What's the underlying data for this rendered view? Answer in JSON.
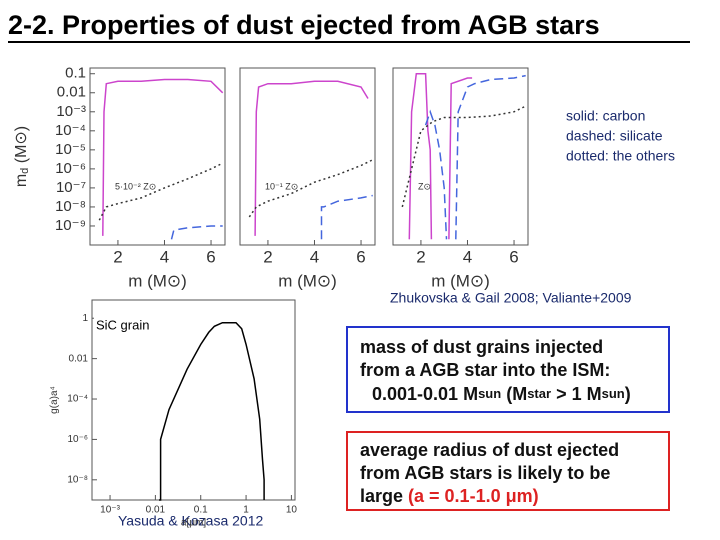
{
  "title": "2-2. Properties of dust ejected from AGB stars",
  "chart_data": [
    {
      "type": "line",
      "log_x": false,
      "log_y": true,
      "annotation": "5·10⁻² Z⊙",
      "ylabel": "m",
      "ylabel_sub": "d",
      "ylabel_unit": " (M⊙)",
      "xlabel": "m  (M⊙)",
      "xlim": [
        0.8,
        6.6
      ],
      "ylim": [
        1e-10,
        0.2
      ],
      "xticks": [
        2,
        4,
        6
      ],
      "yticks": [
        0.1,
        0.01,
        {
          "value": 0.001,
          "label": "10⁻³"
        },
        {
          "value": 0.0001,
          "label": "10⁻⁴"
        },
        {
          "value": 1e-05,
          "label": "10⁻⁵"
        },
        {
          "value": 1e-06,
          "label": "10⁻⁶"
        },
        {
          "value": 1e-07,
          "label": "10⁻⁷"
        },
        {
          "value": 1e-08,
          "label": "10⁻⁸"
        },
        {
          "value": 1e-09,
          "label": "10⁻⁹"
        }
      ],
      "series": [
        {
          "color": "#cc44cc",
          "dash": "solid",
          "x": [
            1.35,
            1.4,
            1.5,
            2,
            3,
            4,
            5,
            6,
            6.5
          ],
          "values": [
            3e-10,
            0.001,
            0.03,
            0.04,
            0.04,
            0.05,
            0.05,
            0.04,
            0.01
          ]
        },
        {
          "color": "#4466dd",
          "dash": "dashed",
          "x": [
            4.3,
            4.4,
            5,
            6,
            6.5
          ],
          "values": [
            2e-10,
            6e-10,
            8e-10,
            1e-09,
            1e-09
          ]
        },
        {
          "color": "#333333",
          "dash": "dotted",
          "x": [
            1.2,
            1.5,
            2,
            3,
            4,
            5,
            6,
            6.5
          ],
          "values": [
            2e-09,
            1e-08,
            1.5e-08,
            3e-08,
            1e-07,
            3e-07,
            1e-06,
            2e-06
          ]
        }
      ]
    },
    {
      "type": "line",
      "log_x": false,
      "log_y": true,
      "annotation": "10⁻¹ Z⊙",
      "xlabel": "m  (M⊙)",
      "xlim": [
        0.8,
        6.6
      ],
      "ylim": [
        1e-10,
        0.2
      ],
      "xticks": [
        2,
        4,
        6
      ],
      "series": [
        {
          "color": "#cc44cc",
          "dash": "solid",
          "x": [
            1.45,
            1.5,
            1.6,
            2,
            3,
            4,
            5,
            6,
            6.3
          ],
          "values": [
            3e-10,
            0.001,
            0.02,
            0.03,
            0.03,
            0.04,
            0.04,
            0.02,
            0.005
          ]
        },
        {
          "color": "#4466dd",
          "dash": "dashed",
          "x": [
            4.3,
            4.3,
            4.4,
            5,
            6,
            6.5
          ],
          "values": [
            2e-10,
            1e-08,
            1e-08,
            2e-08,
            3e-08,
            4e-08
          ]
        },
        {
          "color": "#333333",
          "dash": "dotted",
          "x": [
            1.2,
            1.5,
            2,
            3,
            4,
            5,
            6,
            6.5
          ],
          "values": [
            3e-09,
            1e-08,
            2e-08,
            5e-08,
            2e-07,
            5e-07,
            1.5e-06,
            3e-06
          ]
        }
      ]
    },
    {
      "type": "line",
      "log_x": false,
      "log_y": true,
      "annotation": "Z⊙",
      "xlabel": "m  (M⊙)",
      "xlim": [
        0.8,
        6.6
      ],
      "ylim": [
        1e-10,
        0.2
      ],
      "xticks": [
        2,
        4,
        6
      ],
      "series": [
        {
          "color": "#cc44cc",
          "dash": "solid",
          "x": [
            1.5,
            1.6,
            1.8,
            2.2,
            2.3,
            2.4,
            2.45,
            2.8,
            3.2,
            3.3,
            4,
            4.2
          ],
          "values": [
            2e-10,
            0.001,
            0.1,
            0.1,
            0.0001,
            1e-05,
            2e-10,
            null,
            2e-10,
            0.03,
            0.06,
            0.06
          ]
        },
        {
          "color": "#4466dd",
          "dash": "dashed",
          "x": [
            2.2,
            2.4,
            2.6,
            2.8,
            3,
            3.1,
            3.2,
            3.5,
            3.6,
            4,
            4.3,
            5,
            6,
            6.5
          ],
          "values": [
            0.0002,
            0.001,
            0.0002,
            1e-05,
            1e-07,
            2e-10,
            null,
            2e-10,
            0.001,
            0.02,
            0.03,
            0.05,
            0.06,
            0.08
          ]
        },
        {
          "color": "#333333",
          "dash": "dotted",
          "x": [
            1.2,
            1.6,
            2,
            2.5,
            3,
            4,
            5,
            6,
            6.5
          ],
          "values": [
            1e-08,
            1e-06,
            0.0001,
            0.0003,
            0.0005,
            0.0005,
            0.0006,
            0.001,
            0.002
          ]
        }
      ]
    },
    {
      "type": "line",
      "log_x": true,
      "log_y": true,
      "annotation": "SiC grain",
      "ylabel": "g(a)a⁴",
      "xlabel": "a[μm]",
      "xlim": [
        0.0004,
        12
      ],
      "ylim": [
        1e-09,
        8
      ],
      "xticks": [
        {
          "value": 0.001,
          "label": "10⁻³"
        },
        0.01,
        0.1,
        1,
        10
      ],
      "yticks": [
        1,
        0.01,
        {
          "value": 0.0001,
          "label": "10⁻⁴"
        },
        {
          "value": 1e-06,
          "label": "10⁻⁶"
        },
        {
          "value": 1e-08,
          "label": "10⁻⁸"
        }
      ],
      "series": [
        {
          "color": "#000000",
          "dash": "solid",
          "x": [
            0.012,
            0.013,
            0.013,
            0.02,
            0.05,
            0.1,
            0.15,
            0.2,
            0.3,
            0.6,
            0.8,
            1,
            1.5,
            2,
            2.3,
            2.5,
            2.5
          ],
          "values": [
            1e-09,
            1e-09,
            1e-06,
            3e-05,
            0.003,
            0.05,
            0.2,
            0.4,
            0.6,
            0.6,
            0.3,
            0.05,
            0.001,
            1e-05,
            1e-07,
            1e-08,
            1e-09
          ]
        }
      ]
    }
  ],
  "legend_note": [
    "solid: carbon",
    "dashed: silicate",
    "dotted: the others"
  ],
  "citation_top": "Zhukovska & Gail 2008; Valiante+2009",
  "citation_bottom": "Yasuda & Kozasa 2012",
  "box_mass": {
    "lines": [
      "mass of dust grains injected",
      "from a AGB star into the ISM:"
    ],
    "last_line": [
      [
        "0.001-0.01 M",
        "sun"
      ],
      [
        " (M",
        "star"
      ],
      [
        " > 1 M",
        "sun"
      ],
      [
        ")"
      ]
    ]
  },
  "box_radius": {
    "lines": [
      "average radius of dust ejected",
      "from AGB stars is likely to be"
    ],
    "last_line": {
      "text": "large ",
      "highlight": "(a = 0.1-1.0 μm)"
    }
  }
}
